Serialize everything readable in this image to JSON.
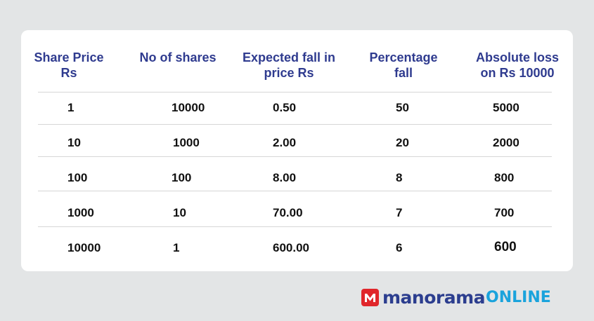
{
  "table": {
    "headers": [
      {
        "line1": "Share Price",
        "line2": "Rs"
      },
      {
        "line1": "No of shares",
        "line2": ""
      },
      {
        "line1": "Expected fall in",
        "line2": "price Rs"
      },
      {
        "line1": "Percentage",
        "line2": "fall"
      },
      {
        "line1": "Absolute loss",
        "line2": "on Rs 10000"
      }
    ],
    "rows": [
      [
        "1",
        "10000",
        "0.50",
        "50",
        "5000"
      ],
      [
        "10",
        "1000",
        "2.00",
        "20",
        "2000"
      ],
      [
        "100",
        "100",
        "8.00",
        "8",
        "800"
      ],
      [
        "1000",
        "10",
        "70.00",
        "7",
        "700"
      ],
      [
        "10000",
        "1",
        "600.00",
        "6",
        "600"
      ]
    ]
  },
  "brand": {
    "name_part1": "manorama",
    "name_part2": "ONLINE",
    "mark_color": "#e0262b",
    "primary_color": "#2c3e8f",
    "secondary_color": "#1aa3dc"
  },
  "colors": {
    "header_text": "#2f3b8f",
    "background": "#e3e5e6",
    "card": "#ffffff"
  }
}
